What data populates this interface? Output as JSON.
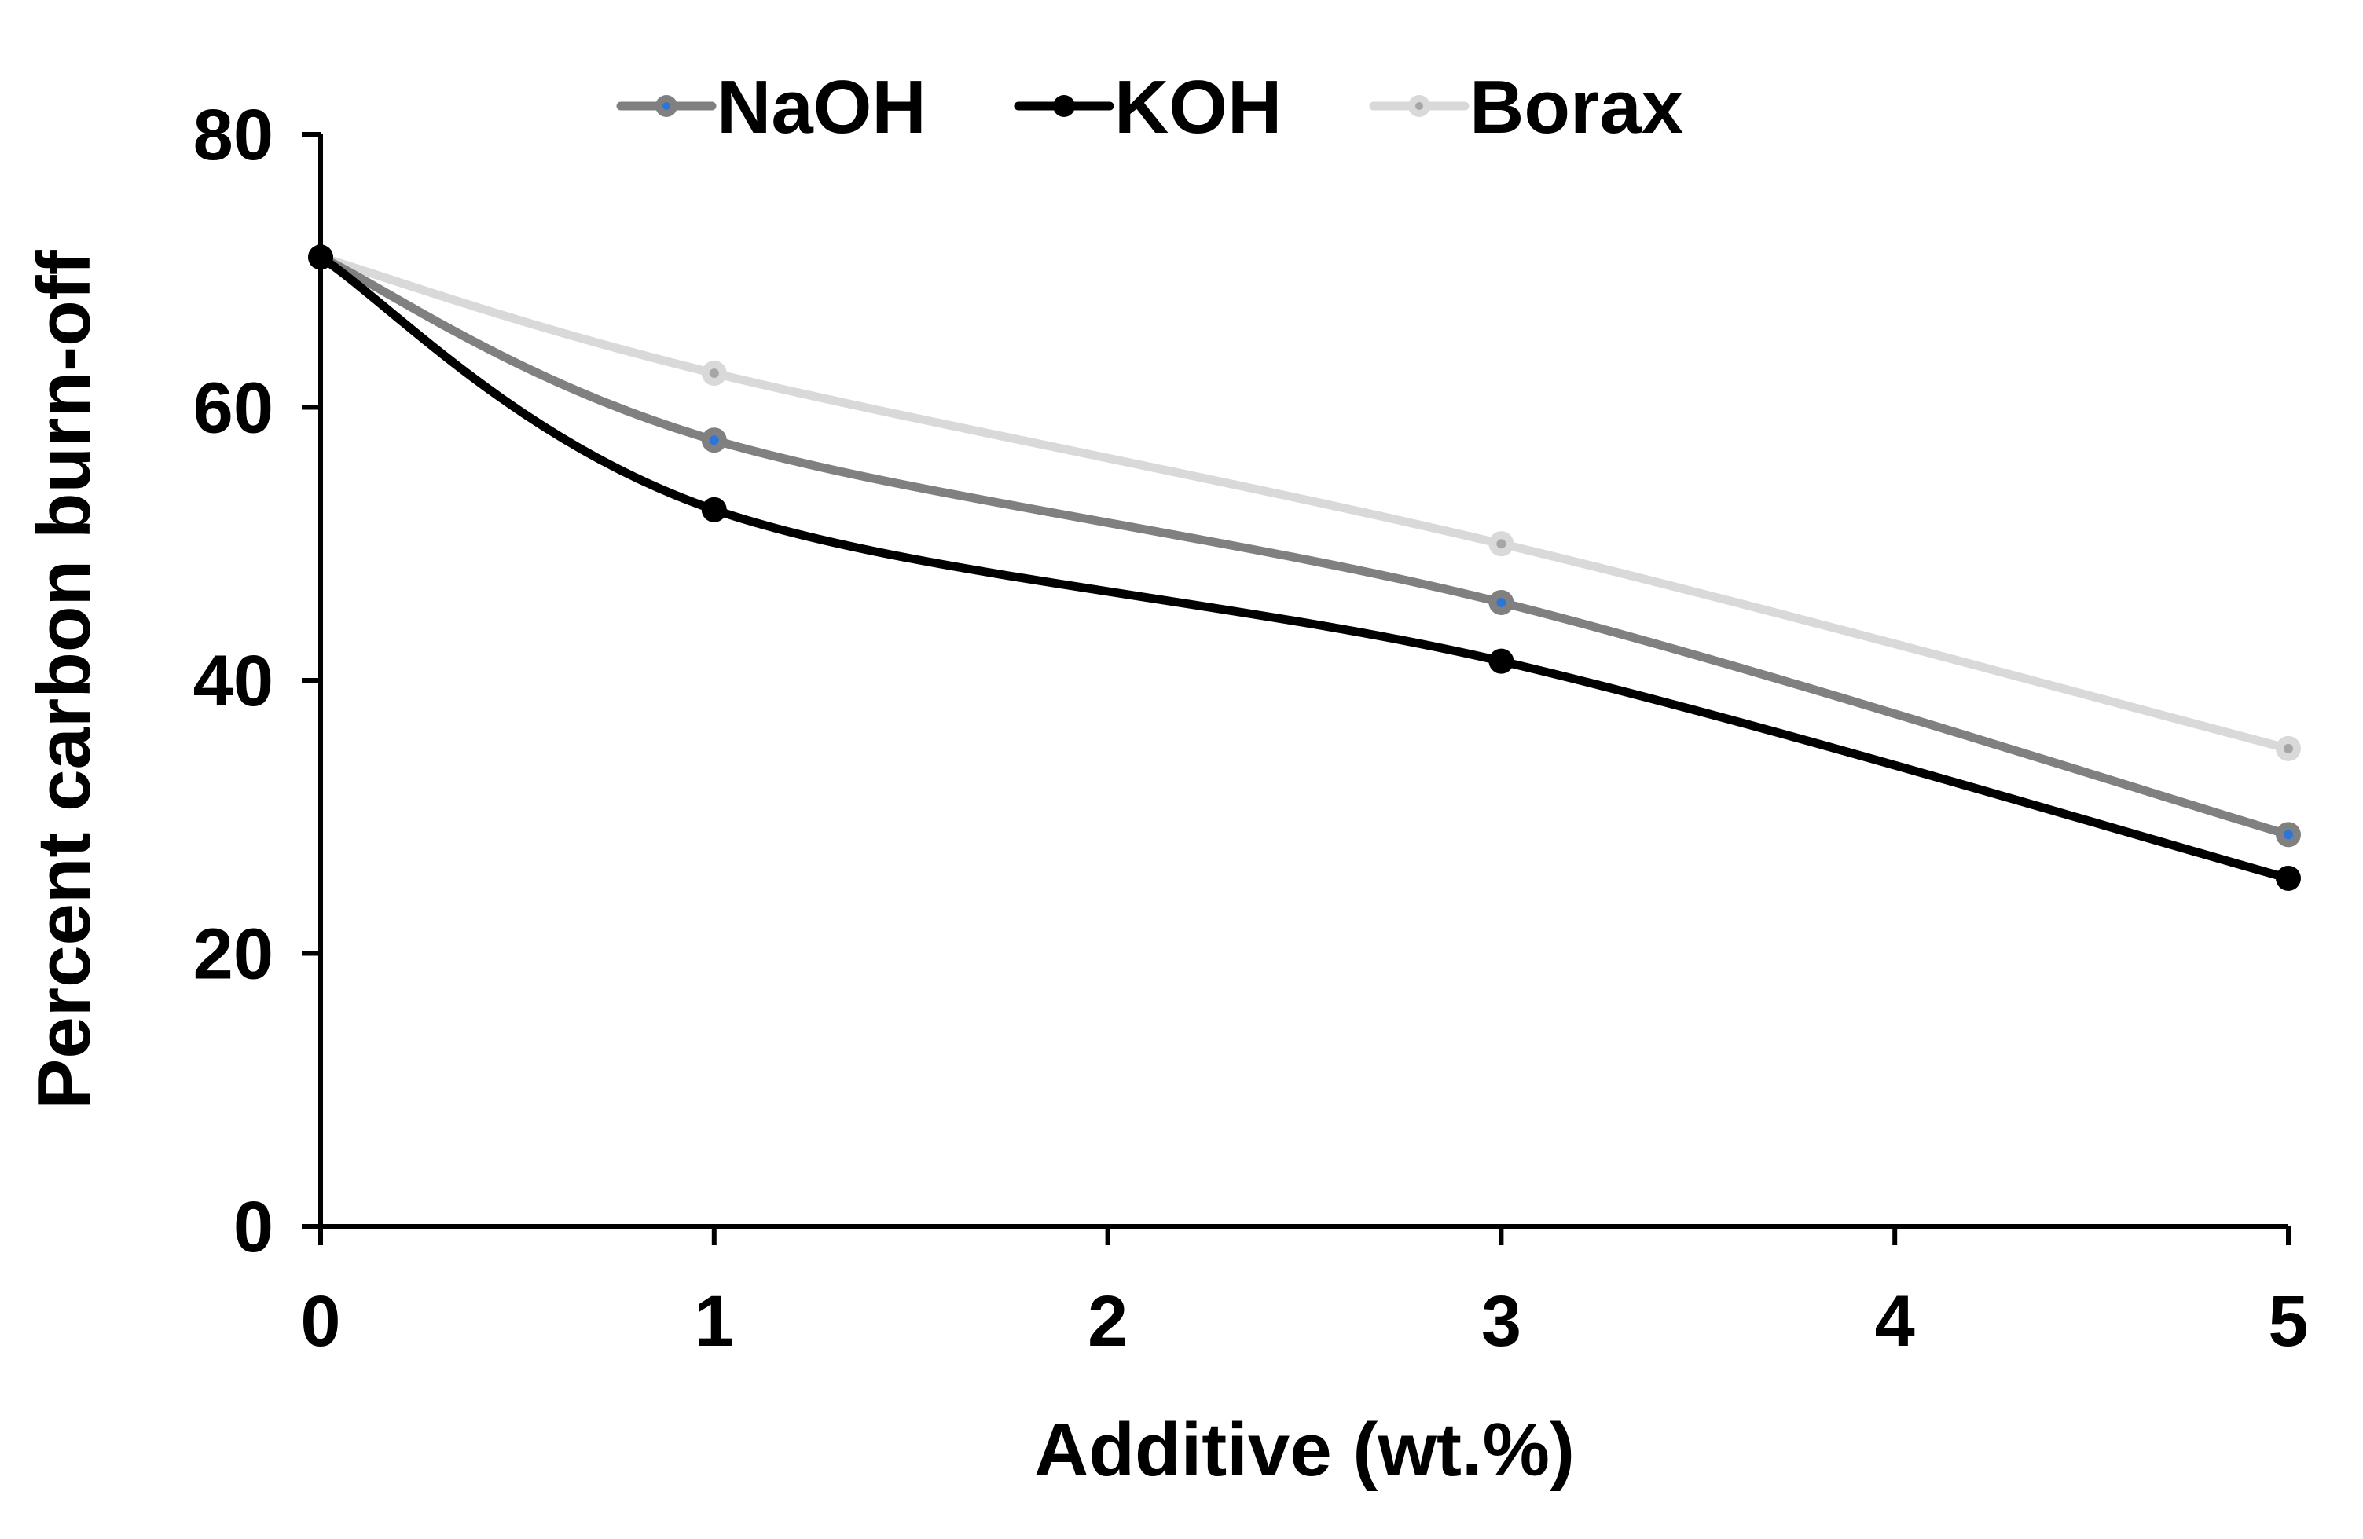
{
  "chart_data": {
    "type": "line",
    "title": "",
    "xlabel": "Additive (wt.%)",
    "ylabel": "Percent carbon burn-off",
    "xlim": [
      0,
      5
    ],
    "ylim": [
      0,
      80
    ],
    "x_ticks": [
      "0",
      "1",
      "2",
      "3",
      "4",
      "5"
    ],
    "y_ticks": [
      "0",
      "20",
      "40",
      "60",
      "80"
    ],
    "grid": false,
    "smoothed_lines": true,
    "legend_position": "top-center",
    "x": [
      0,
      1,
      3,
      5
    ],
    "series": [
      {
        "name": "NaOH",
        "color": "#808080",
        "marker_center_color": "#2e75d6",
        "values": [
          71,
          57.6,
          45.7,
          28.7
        ]
      },
      {
        "name": "KOH",
        "color": "#000000",
        "marker_center_color": "#000000",
        "values": [
          71,
          52.5,
          41.4,
          25.5
        ]
      },
      {
        "name": "Borax",
        "color": "#d9d9d9",
        "marker_center_color": "#a6a6a6",
        "values": [
          71,
          62.5,
          50.0,
          35.0
        ]
      }
    ]
  }
}
